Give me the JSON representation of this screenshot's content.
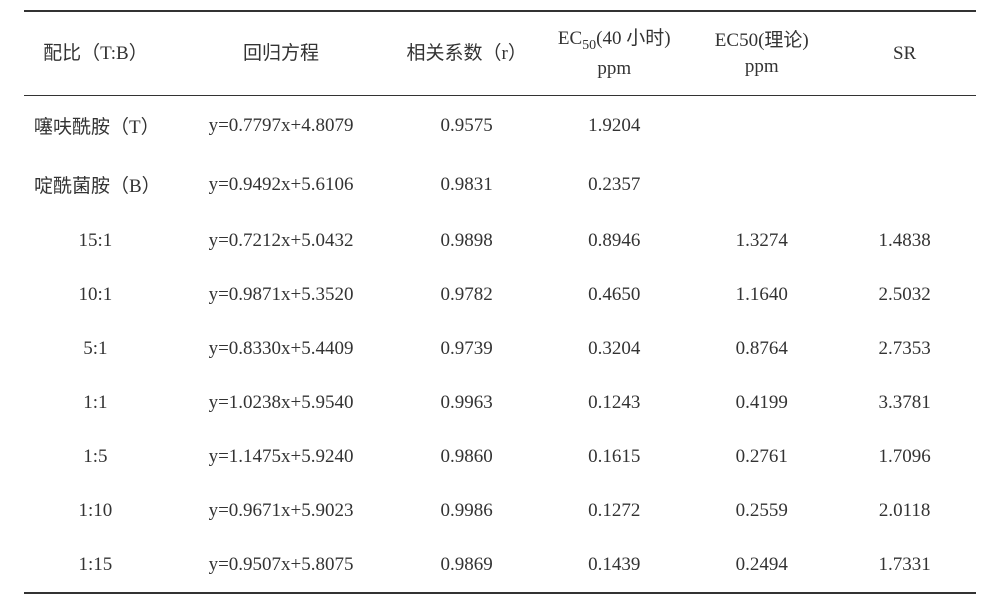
{
  "table": {
    "text_color": "#333333",
    "background_color": "#ffffff",
    "border_color": "#333333",
    "font_family": "SimSun",
    "header_fontsize": 19,
    "cell_fontsize": 19,
    "columns": [
      {
        "key": "ratio",
        "label": "配比（T:B）",
        "width_pct": 15,
        "align": "center"
      },
      {
        "key": "eq",
        "label": "回归方程",
        "width_pct": 24,
        "align": "center"
      },
      {
        "key": "r",
        "label": "相关系数（r）",
        "width_pct": 15,
        "align": "center"
      },
      {
        "key": "ec40",
        "label_html": "EC₅₀(40 小时)\nppm",
        "label_top": "EC",
        "label_sub": "50",
        "label_rest": "(40 小时)",
        "label_line2": "ppm",
        "width_pct": 16,
        "align": "center"
      },
      {
        "key": "ec_th",
        "label_top": "EC50(理论)",
        "label_line2": "ppm",
        "width_pct": 15,
        "align": "center"
      },
      {
        "key": "sr",
        "label": "SR",
        "width_pct": 15,
        "align": "center"
      }
    ],
    "rows": [
      {
        "ratio": "噻呋酰胺（T）",
        "ratio_align": "left",
        "eq": "y=0.7797x+4.8079",
        "r": "0.9575",
        "ec40": "1.9204",
        "ec_th": "",
        "sr": ""
      },
      {
        "ratio": "啶酰菌胺（B）",
        "ratio_align": "left",
        "eq": "y=0.9492x+5.6106",
        "r": "0.9831",
        "ec40": "0.2357",
        "ec_th": "",
        "sr": ""
      },
      {
        "ratio": "15:1",
        "eq": "y=0.7212x+5.0432",
        "r": "0.9898",
        "ec40": "0.8946",
        "ec_th": "1.3274",
        "sr": "1.4838"
      },
      {
        "ratio": "10:1",
        "eq": "y=0.9871x+5.3520",
        "r": "0.9782",
        "ec40": "0.4650",
        "ec_th": "1.1640",
        "sr": "2.5032"
      },
      {
        "ratio": "5:1",
        "eq": "y=0.8330x+5.4409",
        "r": "0.9739",
        "ec40": "0.3204",
        "ec_th": "0.8764",
        "sr": "2.7353"
      },
      {
        "ratio": "1:1",
        "eq": "y=1.0238x+5.9540",
        "r": "0.9963",
        "ec40": "0.1243",
        "ec_th": "0.4199",
        "sr": "3.3781"
      },
      {
        "ratio": "1:5",
        "eq": "y=1.1475x+5.9240",
        "r": "0.9860",
        "ec40": "0.1615",
        "ec_th": "0.2761",
        "sr": "1.7096"
      },
      {
        "ratio": "1:10",
        "eq": "y=0.9671x+5.9023",
        "r": "0.9986",
        "ec40": "0.1272",
        "ec_th": "0.2559",
        "sr": "2.0118"
      },
      {
        "ratio": "1:15",
        "eq": "y=0.9507x+5.8075",
        "r": "0.9869",
        "ec40": "0.1439",
        "ec_th": "0.2494",
        "sr": "1.7331"
      }
    ]
  }
}
